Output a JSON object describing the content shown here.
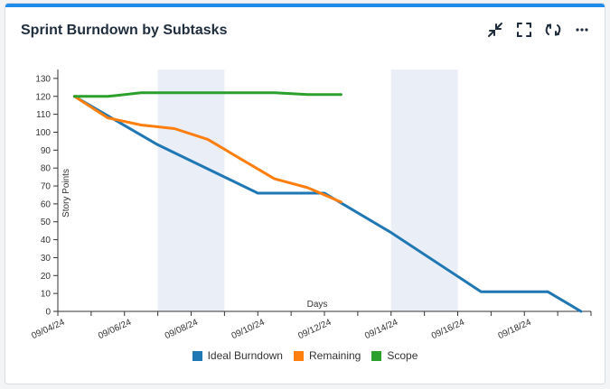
{
  "card": {
    "title": "Sprint Burndown by Subtasks",
    "topbar_color": "#1f8ceb"
  },
  "toolbar": [
    {
      "icon": "minimize-icon",
      "label": "Minimize"
    },
    {
      "icon": "fullscreen-icon",
      "label": "Fullscreen"
    },
    {
      "icon": "refresh-icon",
      "label": "Refresh"
    },
    {
      "icon": "more-icon",
      "label": "More"
    }
  ],
  "chart_data": {
    "type": "line",
    "xlabel": "Days",
    "ylabel": "Story Points",
    "ylim": [
      0,
      135
    ],
    "yticks": [
      0,
      10,
      20,
      30,
      40,
      50,
      60,
      70,
      80,
      90,
      100,
      110,
      120,
      130
    ],
    "xlim": [
      "2024-09-04",
      "2024-09-20"
    ],
    "xtick_labels": [
      "09/04/24",
      "09/06/24",
      "09/08/24",
      "09/10/24",
      "09/12/24",
      "09/14/24",
      "09/16/24",
      "09/18/24"
    ],
    "weekends": [
      [
        "2024-09-07",
        "2024-09-09"
      ],
      [
        "2024-09-14",
        "2024-09-16"
      ]
    ],
    "series": [
      {
        "name": "Ideal Burndown",
        "color": "#1f77b4",
        "points": [
          [
            "2024-09-04.5",
            120
          ],
          [
            "2024-09-07",
            93
          ],
          [
            "2024-09-10",
            66
          ],
          [
            "2024-09-12",
            66
          ],
          [
            "2024-09-14",
            44
          ],
          [
            "2024-09-16.7",
            11
          ],
          [
            "2024-09-18.7",
            11
          ],
          [
            "2024-09-19.7",
            0
          ]
        ]
      },
      {
        "name": "Remaining",
        "color": "#ff7f0e",
        "points": [
          [
            "2024-09-04.5",
            120
          ],
          [
            "2024-09-05.5",
            108
          ],
          [
            "2024-09-06.5",
            104
          ],
          [
            "2024-09-07.5",
            102
          ],
          [
            "2024-09-08.5",
            96
          ],
          [
            "2024-09-09.5",
            85
          ],
          [
            "2024-09-10.5",
            74
          ],
          [
            "2024-09-11.5",
            69
          ],
          [
            "2024-09-12.5",
            61
          ]
        ]
      },
      {
        "name": "Scope",
        "color": "#2ca02c",
        "points": [
          [
            "2024-09-04.5",
            120
          ],
          [
            "2024-09-05.5",
            120
          ],
          [
            "2024-09-06.5",
            122
          ],
          [
            "2024-09-07.5",
            122
          ],
          [
            "2024-09-08.5",
            122
          ],
          [
            "2024-09-09.5",
            122
          ],
          [
            "2024-09-10.5",
            122
          ],
          [
            "2024-09-11.5",
            121
          ],
          [
            "2024-09-12.5",
            121
          ]
        ]
      }
    ],
    "legend": [
      "Ideal Burndown",
      "Remaining",
      "Scope"
    ],
    "legend_position": "bottom"
  }
}
